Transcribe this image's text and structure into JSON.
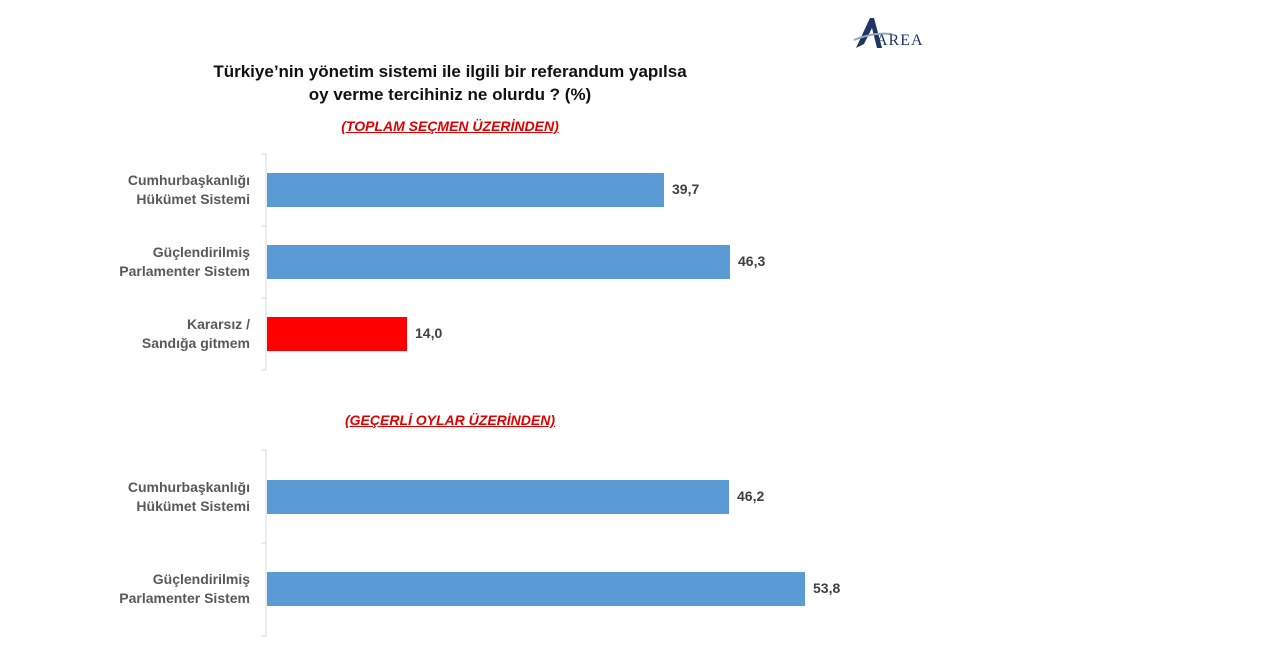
{
  "logo": {
    "text": "AREA",
    "icon": "area-logo-icon"
  },
  "chart_data": {
    "type": "bar",
    "orientation": "horizontal",
    "title": [
      "Türkiye’nin yönetim sistemi ile ilgili bir referandum yapılsa",
      "oy verme tercihiniz ne olurdu ? (%)"
    ],
    "xlim": [
      0,
      60
    ],
    "grid": false,
    "legend": "none",
    "panels": [
      {
        "subtitle": "(TOPLAM SEÇMEN ÜZERİNDEN)",
        "categories": [
          [
            "Cumhurbaşkanlığı",
            "Hükümet Sistemi"
          ],
          [
            "Güçlendirilmiş",
            "Parlamenter Sistem"
          ],
          [
            "Kararsız /",
            "Sandığa gitmem"
          ]
        ],
        "values": [
          39.7,
          46.3,
          14.0
        ],
        "value_labels": [
          "39,7",
          "46,3",
          "14,0"
        ],
        "colors": [
          "#5b9bd5",
          "#5b9bd5",
          "#ff0000"
        ]
      },
      {
        "subtitle": "(GEÇERLİ OYLAR ÜZERİNDEN)",
        "categories": [
          [
            "Cumhurbaşkanlığı",
            "Hükümet Sistemi"
          ],
          [
            "Güçlendirilmiş",
            "Parlamenter Sistem"
          ]
        ],
        "values": [
          46.2,
          53.8
        ],
        "value_labels": [
          "46,2",
          "53,8"
        ],
        "colors": [
          "#5b9bd5",
          "#5b9bd5"
        ]
      }
    ]
  }
}
